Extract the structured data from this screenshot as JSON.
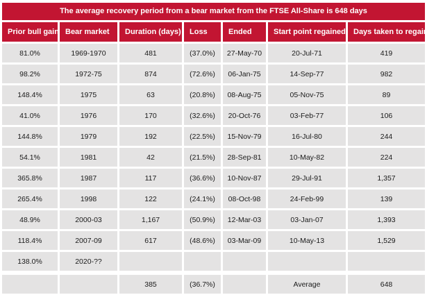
{
  "colors": {
    "header_red": "#c21532",
    "row_gray": "#e4e3e3",
    "text_dark": "#1a1a1a",
    "header_text": "#ffffff",
    "background": "#ffffff"
  },
  "chart_data": {
    "type": "table",
    "title": "The average recovery period from a bear market from the FTSE All-Share is 648 days",
    "columns": [
      "Prior bull gain",
      "Bear market",
      "Duration (days)",
      "Loss",
      "Ended",
      "Start point regained",
      "Days taken to regain"
    ],
    "rows": [
      [
        "81.0%",
        "1969-1970",
        "481",
        "(37.0%)",
        "27-May-70",
        "20-Jul-71",
        "419"
      ],
      [
        "98.2%",
        "1972-75",
        "874",
        "(72.6%)",
        "06-Jan-75",
        "14-Sep-77",
        "982"
      ],
      [
        "148.4%",
        "1975",
        "63",
        "(20.8%)",
        "08-Aug-75",
        "05-Nov-75",
        "89"
      ],
      [
        "41.0%",
        "1976",
        "170",
        "(32.6%)",
        "20-Oct-76",
        "03-Feb-77",
        "106"
      ],
      [
        "144.8%",
        "1979",
        "192",
        "(22.5%)",
        "15-Nov-79",
        "16-Jul-80",
        "244"
      ],
      [
        "54.1%",
        "1981",
        "42",
        "(21.5%)",
        "28-Sep-81",
        "10-May-82",
        "224"
      ],
      [
        "365.8%",
        "1987",
        "117",
        "(36.6%)",
        "10-Nov-87",
        "29-Jul-91",
        "1,357"
      ],
      [
        "265.4%",
        "1998",
        "122",
        "(24.1%)",
        "08-Oct-98",
        "24-Feb-99",
        "139"
      ],
      [
        "48.9%",
        "2000-03",
        "1,167",
        "(50.9%)",
        "12-Mar-03",
        "03-Jan-07",
        "1,393"
      ],
      [
        "118.4%",
        "2007-09",
        "617",
        "(48.6%)",
        "03-Mar-09",
        "10-May-13",
        "1,529"
      ],
      [
        "138.0%",
        "2020-??",
        "",
        "",
        "",
        "",
        ""
      ]
    ],
    "summary_row": [
      "",
      "",
      "385",
      "(36.7%)",
      "",
      "Average",
      "648"
    ]
  }
}
